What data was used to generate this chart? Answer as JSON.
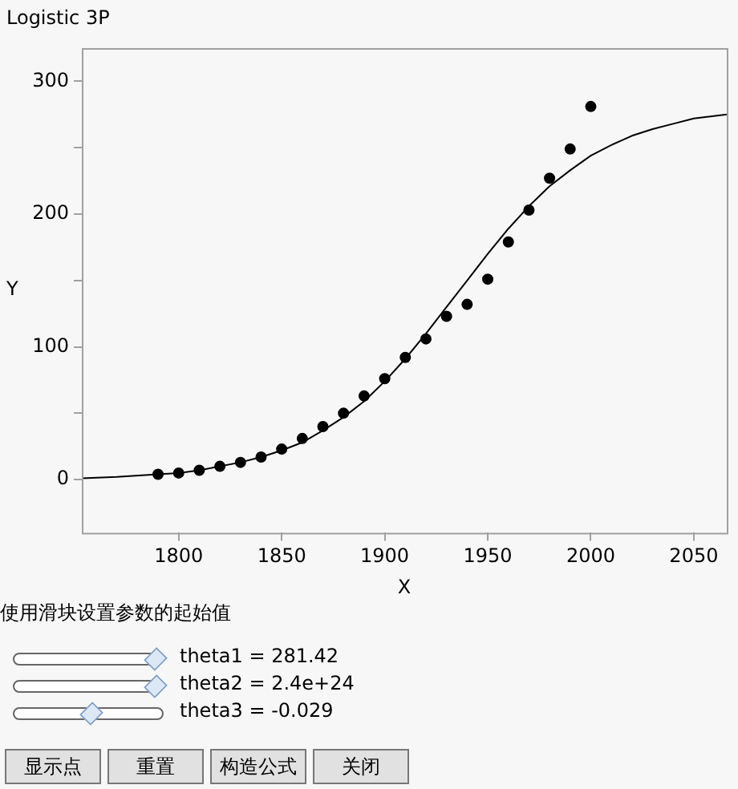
{
  "chart_data": {
    "type": "scatter",
    "title": "Logistic 3P",
    "xlabel": "X",
    "ylabel": "Y",
    "xlim": [
      1753,
      2066
    ],
    "xticks": [
      1800,
      1850,
      1900,
      1950,
      2000,
      2050
    ],
    "ylim": [
      -40,
      325
    ],
    "yticks": [
      0,
      {
        "value": 50,
        "label": null
      },
      100,
      {
        "value": 150,
        "label": null
      },
      200,
      {
        "value": 250,
        "label": null
      },
      300
    ],
    "grid": false,
    "legend": false,
    "series": [
      {
        "type": "scatter",
        "marker": "circle",
        "color": "#000000",
        "x": [
          1790,
          1800,
          1810,
          1820,
          1830,
          1840,
          1850,
          1860,
          1870,
          1880,
          1890,
          1900,
          1910,
          1920,
          1930,
          1940,
          1950,
          1960,
          1970,
          1980,
          1990,
          2000
        ],
        "values": [
          4,
          5,
          7,
          10,
          13,
          17,
          23,
          31,
          40,
          50,
          63,
          76,
          92,
          106,
          123,
          132,
          151,
          179,
          203,
          227,
          249,
          281
        ]
      },
      {
        "type": "line",
        "marker": "none",
        "color": "#000000",
        "x": [
          1753,
          1770,
          1790,
          1800,
          1810,
          1820,
          1830,
          1840,
          1850,
          1860,
          1870,
          1880,
          1890,
          1900,
          1910,
          1920,
          1930,
          1940,
          1950,
          1960,
          1970,
          1980,
          1990,
          2000,
          2010,
          2020,
          2030,
          2040,
          2050,
          2066
        ],
        "values": [
          1,
          2,
          4,
          5,
          7,
          10,
          13,
          17,
          22,
          28,
          37,
          47,
          59,
          74,
          91,
          110,
          130,
          150,
          170,
          189,
          206,
          221,
          233,
          244,
          252,
          259,
          264,
          268,
          272,
          275
        ]
      }
    ],
    "annotations": [
      "使用滑块设置参数的起始值",
      "theta1 = 281.42",
      "theta2 = 2.4e+24",
      "theta3 = -0.029",
      "显示点",
      "重置",
      "构造公式",
      "关闭"
    ]
  }
}
